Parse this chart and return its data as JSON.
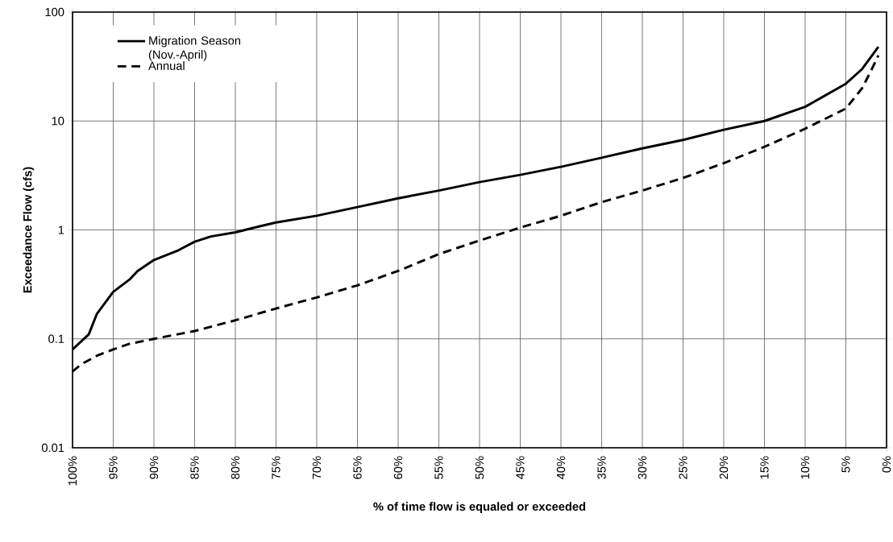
{
  "chart_data": {
    "type": "line",
    "xlabel": "% of time flow is equaled or exceeded",
    "ylabel": "Exceedance Flow (cfs)",
    "log": "y",
    "grid": true,
    "legend": "top left",
    "marker": "none",
    "xlim": [
      100,
      0
    ],
    "ylim": [
      0.01,
      100
    ],
    "xticks": [
      {
        "value": 100,
        "label": "100%"
      },
      {
        "value": 95,
        "label": "95%"
      },
      {
        "value": 90,
        "label": "90%"
      },
      {
        "value": 85,
        "label": "85%"
      },
      {
        "value": 80,
        "label": "80%"
      },
      {
        "value": 75,
        "label": "75%"
      },
      {
        "value": 70,
        "label": "70%"
      },
      {
        "value": 65,
        "label": "65%"
      },
      {
        "value": 60,
        "label": "60%"
      },
      {
        "value": 55,
        "label": "55%"
      },
      {
        "value": 50,
        "label": "50%"
      },
      {
        "value": 45,
        "label": "45%"
      },
      {
        "value": 40,
        "label": "40%"
      },
      {
        "value": 35,
        "label": "35%"
      },
      {
        "value": 30,
        "label": "30%"
      },
      {
        "value": 25,
        "label": "25%"
      },
      {
        "value": 20,
        "label": "20%"
      },
      {
        "value": 15,
        "label": "15%"
      },
      {
        "value": 10,
        "label": "10%"
      },
      {
        "value": 5,
        "label": "5%"
      },
      {
        "value": 0,
        "label": "0%"
      }
    ],
    "yticks": [
      0.01,
      0.1,
      1,
      10,
      100
    ],
    "series": [
      {
        "name": "Migration Season (Nov.-April)",
        "color": "#000000",
        "line_style": "solid",
        "x": [
          100,
          98,
          97,
          95,
          93,
          92,
          90,
          87,
          85,
          83,
          80,
          77,
          75,
          70,
          65,
          60,
          55,
          50,
          45,
          40,
          35,
          30,
          25,
          20,
          15,
          10,
          5,
          3,
          1
        ],
        "values": [
          0.08,
          0.11,
          0.17,
          0.27,
          0.35,
          0.42,
          0.53,
          0.65,
          0.78,
          0.87,
          0.95,
          1.08,
          1.17,
          1.35,
          1.62,
          1.95,
          2.3,
          2.75,
          3.2,
          3.8,
          4.6,
          5.6,
          6.7,
          8.3,
          10,
          13.5,
          22,
          30,
          48
        ]
      },
      {
        "name": "Annual",
        "color": "#000000",
        "line_style": "dashed",
        "x": [
          100,
          99,
          97,
          95,
          93,
          90,
          85,
          80,
          75,
          70,
          65,
          60,
          55,
          50,
          45,
          40,
          35,
          30,
          25,
          20,
          15,
          10,
          5,
          3,
          2,
          1
        ],
        "values": [
          0.05,
          0.058,
          0.07,
          0.08,
          0.09,
          0.1,
          0.118,
          0.148,
          0.19,
          0.24,
          0.31,
          0.42,
          0.6,
          0.8,
          1.05,
          1.35,
          1.8,
          2.3,
          3,
          4.1,
          5.8,
          8.5,
          13,
          20,
          28,
          40
        ]
      }
    ]
  }
}
